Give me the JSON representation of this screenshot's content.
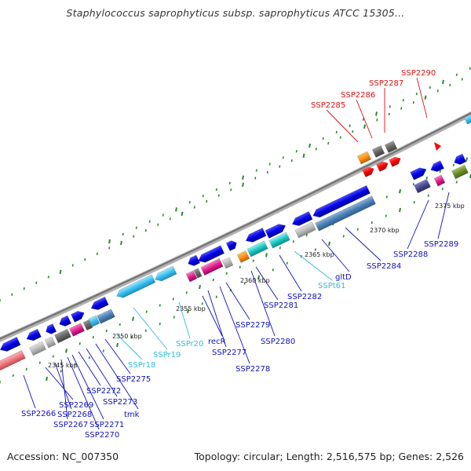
{
  "title": "Staphylococcus saprophyticus subsp. saprophyticus ATCC 15305...",
  "footer": {
    "accession": "Accession: NC_007350",
    "summary": "Topology: circular; Length: 2,516,575 bp; Genes: 2,526"
  },
  "colors": {
    "cds": "#0000e0",
    "trna": "#33ccee",
    "misc_label": "#e02020",
    "backbone": "#888888",
    "tick": "#228822"
  },
  "kbp_labels": [
    "2345 kbp",
    "2350 kbp",
    "2355 kbp",
    "2360 kbp",
    "2365 kbp",
    "2370 kbp",
    "2375 kbp"
  ],
  "gene_labels": {
    "ssp2266": "SSP2266",
    "ssp2269": "SSP2269",
    "ssp2268": "SSP2268",
    "ssp2267": "SSP2267",
    "ssp2271": "SSP2271",
    "ssp2270": "SSP2270",
    "ssp2272": "SSP2272",
    "ssp2273": "SSP2273",
    "tmk": "tmk",
    "ssp2275": "SSP2275",
    "sspr18": "SSPr18",
    "sspr19": "SSPr19",
    "sspr20": "SSPr20",
    "recr": "recR",
    "ssp2277": "SSP2277",
    "ssp2278": "SSP2278",
    "ssp2279": "SSP2279",
    "ssp2280": "SSP2280",
    "ssp2281": "SSP2281",
    "ssp2282": "SSP2282",
    "sspt61": "SSPt61",
    "gltd": "gltD",
    "ssp2284": "SSP2284",
    "ssp2288": "SSP2288",
    "ssp2289": "SSP2289",
    "ssp2285": "SSP2285",
    "ssp2286": "SSP2286",
    "ssp2287": "SSP2287",
    "ssp2290": "SSP2290"
  }
}
